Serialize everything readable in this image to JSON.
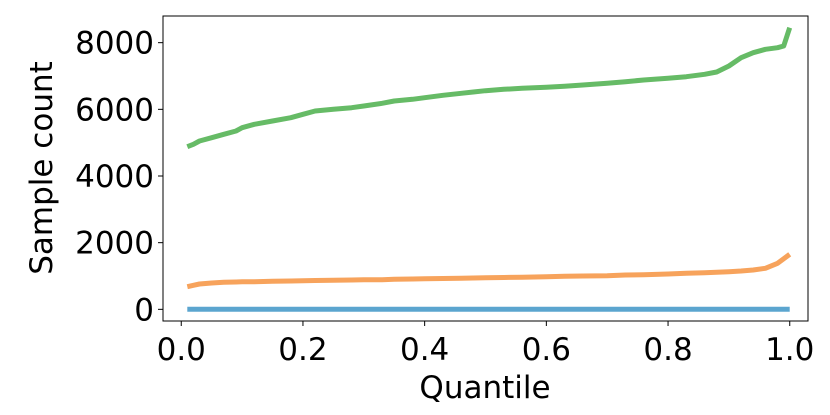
{
  "chart_data": {
    "type": "line",
    "xlabel": "Quantile",
    "ylabel": "Sample count",
    "xlim": [
      -0.03,
      1.03
    ],
    "ylim": [
      -350,
      8800
    ],
    "x_ticks": [
      0.0,
      0.2,
      0.4,
      0.6,
      0.8,
      1.0
    ],
    "x_tick_labels": [
      "0.0",
      "0.2",
      "0.4",
      "0.6",
      "0.8",
      "1.0"
    ],
    "y_ticks": [
      0,
      2000,
      4000,
      6000,
      8000
    ],
    "y_tick_labels": [
      "0",
      "2000",
      "4000",
      "6000",
      "8000"
    ],
    "grid": false,
    "legend": "none",
    "x": [
      0.01,
      0.02,
      0.03,
      0.05,
      0.07,
      0.09,
      0.1,
      0.12,
      0.15,
      0.18,
      0.2,
      0.22,
      0.25,
      0.28,
      0.3,
      0.33,
      0.35,
      0.38,
      0.4,
      0.43,
      0.46,
      0.48,
      0.5,
      0.53,
      0.56,
      0.6,
      0.63,
      0.66,
      0.7,
      0.73,
      0.76,
      0.8,
      0.83,
      0.86,
      0.88,
      0.9,
      0.92,
      0.94,
      0.96,
      0.98,
      0.99,
      1.0
    ],
    "series": [
      {
        "color": "#5ba5cf",
        "values": [
          0,
          0,
          0,
          0,
          0,
          0,
          0,
          0,
          0,
          0,
          0,
          0,
          0,
          0,
          0,
          0,
          0,
          0,
          0,
          0,
          0,
          0,
          0,
          0,
          0,
          0,
          0,
          0,
          0,
          0,
          0,
          0,
          0,
          0,
          0,
          0,
          0,
          0,
          0,
          0,
          0,
          0
        ]
      },
      {
        "color": "#f7a35c",
        "values": [
          680,
          720,
          760,
          790,
          810,
          820,
          825,
          830,
          840,
          850,
          860,
          865,
          870,
          880,
          885,
          890,
          900,
          910,
          915,
          925,
          935,
          940,
          945,
          955,
          965,
          975,
          990,
          1000,
          1010,
          1030,
          1040,
          1060,
          1080,
          1100,
          1110,
          1130,
          1150,
          1180,
          1230,
          1380,
          1520,
          1650
        ]
      },
      {
        "color": "#66bb66",
        "values": [
          4880,
          4950,
          5050,
          5150,
          5250,
          5350,
          5450,
          5550,
          5650,
          5750,
          5850,
          5950,
          6000,
          6050,
          6100,
          6180,
          6250,
          6300,
          6350,
          6420,
          6480,
          6520,
          6560,
          6600,
          6630,
          6660,
          6690,
          6730,
          6780,
          6830,
          6880,
          6930,
          6980,
          7050,
          7120,
          7300,
          7550,
          7700,
          7800,
          7850,
          7900,
          8450
        ]
      }
    ]
  }
}
